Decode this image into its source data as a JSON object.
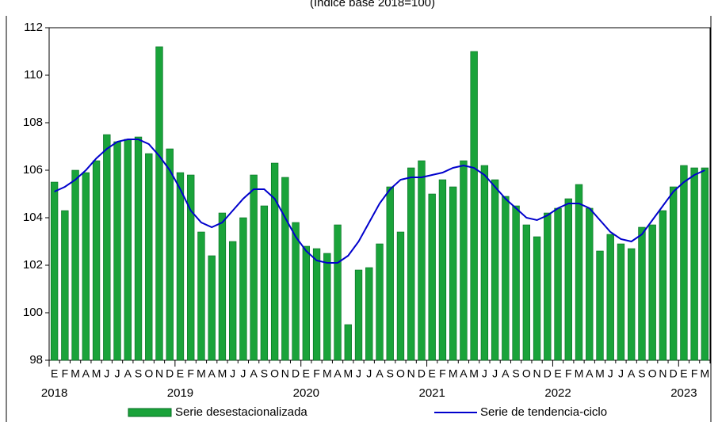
{
  "chart_data": {
    "type": "bar-line",
    "subtitle": "(Índice base 2018=100)",
    "categories": [
      "E",
      "F",
      "M",
      "A",
      "M",
      "J",
      "J",
      "A",
      "S",
      "O",
      "N",
      "D",
      "E",
      "F",
      "M",
      "A",
      "M",
      "J",
      "J",
      "A",
      "S",
      "O",
      "N",
      "D",
      "E",
      "F",
      "M",
      "A",
      "M",
      "J",
      "J",
      "A",
      "S",
      "O",
      "N",
      "D",
      "E",
      "F",
      "M",
      "A",
      "M",
      "J",
      "J",
      "A",
      "S",
      "O",
      "N",
      "D",
      "E",
      "F",
      "M",
      "A",
      "M",
      "J",
      "J",
      "A",
      "S",
      "O",
      "N",
      "D",
      "E",
      "F",
      "M"
    ],
    "year_labels": [
      "2018",
      "2019",
      "2020",
      "2021",
      "2022",
      "2023"
    ],
    "series": [
      {
        "name": "Serie desestacionalizada",
        "type": "bar",
        "color": "#1aa33a",
        "values": [
          105.5,
          104.3,
          106.0,
          105.9,
          106.4,
          107.5,
          107.2,
          107.3,
          107.4,
          106.7,
          111.2,
          106.9,
          105.9,
          105.8,
          103.4,
          102.4,
          104.2,
          103.0,
          104.0,
          105.8,
          104.5,
          106.3,
          105.7,
          103.8,
          102.8,
          102.7,
          102.5,
          103.7,
          99.5,
          101.8,
          101.9,
          102.9,
          105.3,
          103.4,
          106.1,
          106.4,
          105.0,
          105.6,
          105.3,
          106.4,
          111.0,
          106.2,
          105.6,
          104.9,
          104.5,
          103.7,
          103.2,
          104.2,
          104.4,
          104.8,
          105.4,
          104.4,
          102.6,
          103.3,
          102.9,
          102.7,
          103.6,
          103.7,
          104.3,
          105.3,
          106.2,
          106.1,
          106.1
        ]
      },
      {
        "name": "Serie de tendencia-ciclo",
        "type": "line",
        "color": "#0000cc",
        "values": [
          105.1,
          105.3,
          105.6,
          106.0,
          106.5,
          106.9,
          107.2,
          107.3,
          107.3,
          107.1,
          106.6,
          106.0,
          105.2,
          104.3,
          103.8,
          103.6,
          103.8,
          104.3,
          104.8,
          105.2,
          105.2,
          104.8,
          104.0,
          103.2,
          102.6,
          102.2,
          102.1,
          102.1,
          102.4,
          103.0,
          103.8,
          104.6,
          105.2,
          105.6,
          105.7,
          105.7,
          105.8,
          105.9,
          106.1,
          106.2,
          106.1,
          105.8,
          105.3,
          104.8,
          104.4,
          104.0,
          103.9,
          104.1,
          104.4,
          104.6,
          104.6,
          104.4,
          103.9,
          103.4,
          103.1,
          103.0,
          103.3,
          103.9,
          104.5,
          105.1,
          105.5,
          105.8,
          106.0
        ]
      }
    ],
    "ylim": [
      98,
      112
    ],
    "yticks": [
      98,
      100,
      102,
      104,
      106,
      108,
      110,
      112
    ]
  }
}
